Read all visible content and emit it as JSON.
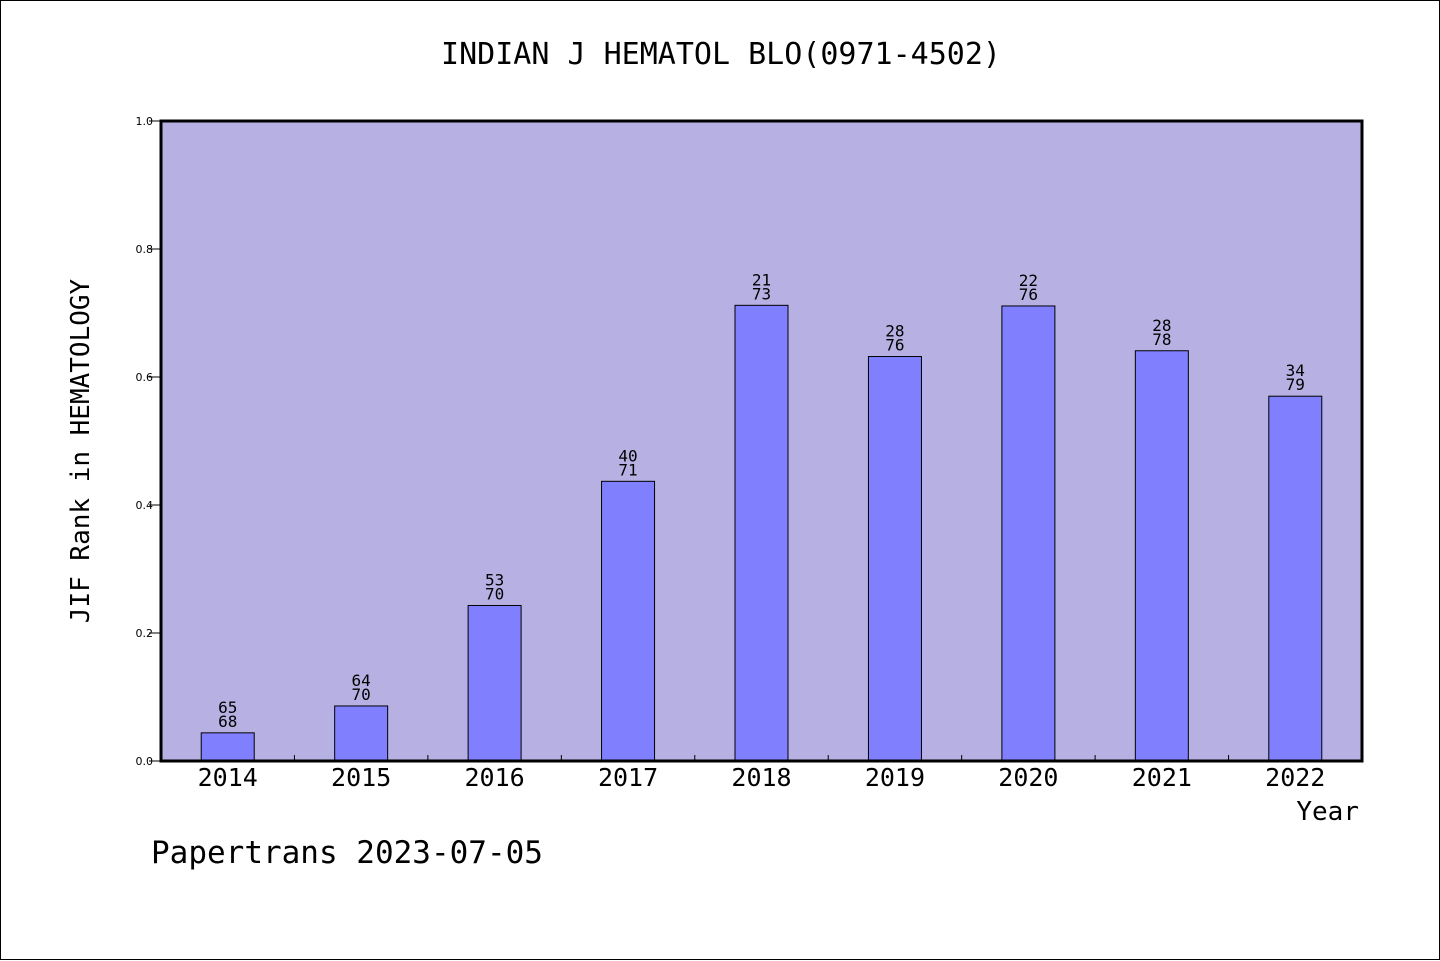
{
  "colors": {
    "plot_background": "#b6b1e2",
    "bar_fill": "#8080ff",
    "bar_stroke": "#000000",
    "axis": "#000000"
  },
  "footer": {
    "credit": "Papertrans 2023-07-05"
  },
  "chart_data": {
    "type": "bar",
    "title": "INDIAN J HEMATOL BLO(0971-4502)",
    "xlabel": "Year",
    "ylabel": "JIF Rank in HEMATOLOGY",
    "ylim": [
      0,
      1.0
    ],
    "yticks": [
      "0.0",
      "0.2",
      "0.4",
      "0.6",
      "0.8",
      "1.0"
    ],
    "grid": false,
    "categories": [
      "2014",
      "2015",
      "2016",
      "2017",
      "2018",
      "2019",
      "2020",
      "2021",
      "2022"
    ],
    "values": [
      0.044,
      0.086,
      0.243,
      0.437,
      0.712,
      0.632,
      0.711,
      0.641,
      0.57
    ],
    "rank": [
      "65",
      "64",
      "53",
      "40",
      "21",
      "28",
      "22",
      "28",
      "34"
    ],
    "total": [
      "68",
      "70",
      "70",
      "71",
      "73",
      "76",
      "76",
      "78",
      "79"
    ]
  }
}
